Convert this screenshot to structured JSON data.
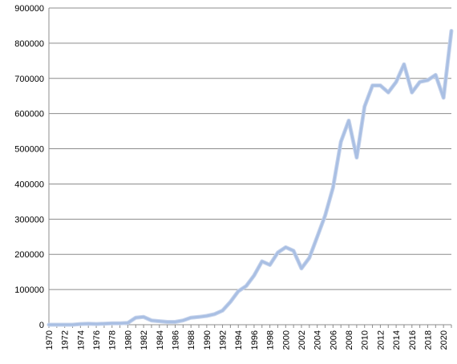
{
  "chart_data": {
    "type": "line",
    "title": "",
    "xlabel": "",
    "ylabel": "",
    "ylim": [
      0,
      900000
    ],
    "xlim": [
      1970,
      2021
    ],
    "grid": "horizontal",
    "legend": "none",
    "y_ticks": [
      "0",
      "100000",
      "200000",
      "300000",
      "400000",
      "500000",
      "600000",
      "700000",
      "800000",
      "900000"
    ],
    "x_ticks": [
      "1970",
      "1972",
      "1974",
      "1976",
      "1978",
      "1980",
      "1982",
      "1984",
      "1986",
      "1988",
      "1990",
      "1992",
      "1994",
      "1996",
      "1998",
      "2000",
      "2002",
      "2004",
      "2006",
      "2008",
      "2010",
      "2012",
      "2014",
      "2016",
      "2018",
      "2020"
    ],
    "series": [
      {
        "color": "#a9bfe3",
        "x": [
          1970,
          1971,
          1972,
          1973,
          1974,
          1975,
          1976,
          1977,
          1978,
          1979,
          1980,
          1981,
          1982,
          1983,
          1984,
          1985,
          1986,
          1987,
          1988,
          1989,
          1990,
          1991,
          1992,
          1993,
          1994,
          1995,
          1996,
          1997,
          1998,
          1999,
          2000,
          2001,
          2002,
          2003,
          2004,
          2005,
          2006,
          2007,
          2008,
          2009,
          2010,
          2011,
          2012,
          2013,
          2014,
          2015,
          2016,
          2017,
          2018,
          2019,
          2020,
          2021
        ],
        "values": [
          0,
          0,
          0,
          0,
          2000,
          3000,
          2000,
          3000,
          4000,
          4000,
          5000,
          20000,
          22000,
          12000,
          10000,
          8000,
          8000,
          12000,
          20000,
          22000,
          25000,
          30000,
          40000,
          65000,
          95000,
          110000,
          140000,
          180000,
          170000,
          205000,
          220000,
          210000,
          160000,
          190000,
          250000,
          310000,
          390000,
          520000,
          580000,
          475000,
          620000,
          680000,
          680000,
          660000,
          690000,
          740000,
          660000,
          690000,
          695000,
          710000,
          645000,
          835000
        ]
      }
    ]
  }
}
